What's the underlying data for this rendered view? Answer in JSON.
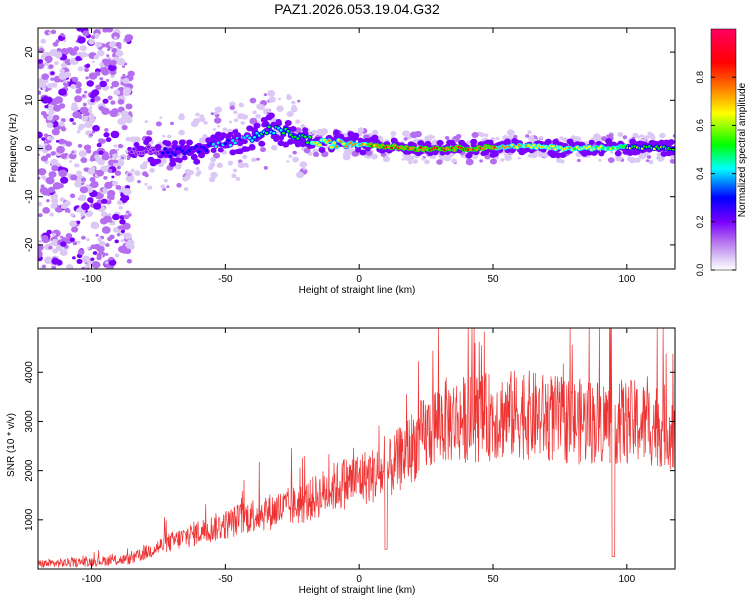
{
  "figure": {
    "title": "PAZ1.2026.053.19.04.G32"
  },
  "chart_data": [
    {
      "type": "heatmap",
      "id": "spectrogram",
      "xlabel": "Height of straight line (km)",
      "ylabel": "Frequency (Hz)",
      "xlim": [
        -120,
        118
      ],
      "ylim": [
        -25,
        25
      ],
      "xticks": [
        -100,
        -50,
        0,
        50,
        100
      ],
      "yticks": [
        -20,
        -10,
        0,
        10,
        20
      ],
      "colorbar": {
        "label": "Normalized spectral amplitude",
        "range": [
          0.0,
          1.0
        ],
        "ticks": [
          "0.0",
          "0.2",
          "0.4",
          "0.6",
          "0.8"
        ],
        "colors": [
          "#ffffff",
          "#dcc8f5",
          "#b46eef",
          "#7a00ff",
          "#0000ff",
          "#00ffff",
          "#00ff00",
          "#ffff00",
          "#ff8000",
          "#ff0000",
          "#ff0060"
        ]
      },
      "ridge": {
        "description_points_x_km": [
          -85,
          -80,
          -70,
          -60,
          -50,
          -40,
          -33,
          -25,
          -15,
          0,
          10,
          20,
          40,
          60,
          80,
          100,
          118
        ],
        "center_freq_hz": [
          -1,
          0,
          -1,
          0,
          1,
          2,
          4,
          3,
          1,
          1,
          0.5,
          0,
          0,
          0.5,
          0,
          0.3,
          0
        ],
        "peak_amplitude": [
          0.25,
          0.3,
          0.35,
          0.4,
          0.45,
          0.5,
          0.55,
          0.6,
          0.75,
          0.85,
          0.9,
          0.95,
          0.95,
          0.8,
          0.75,
          0.7,
          0.65
        ]
      }
    },
    {
      "type": "line",
      "id": "snr",
      "xlabel": "Height of straight line (km)",
      "ylabel": "SNR (10 * v/v)",
      "xlim": [
        -120,
        118
      ],
      "ylim": [
        0,
        4900
      ],
      "xticks": [
        -100,
        -50,
        0,
        50,
        100
      ],
      "yticks": [
        1000,
        2000,
        3000,
        4000
      ],
      "color": "#ee3333",
      "envelope_x_km": [
        -120,
        -100,
        -85,
        -75,
        -60,
        -50,
        -40,
        -30,
        -20,
        -10,
        0,
        10,
        20,
        30,
        50,
        60,
        80,
        95,
        110,
        118
      ],
      "envelope_mean": [
        100,
        150,
        200,
        450,
        750,
        900,
        1100,
        1200,
        1350,
        1650,
        1850,
        1950,
        2500,
        3000,
        3100,
        3150,
        3000,
        3000,
        2950,
        2850
      ]
    }
  ]
}
